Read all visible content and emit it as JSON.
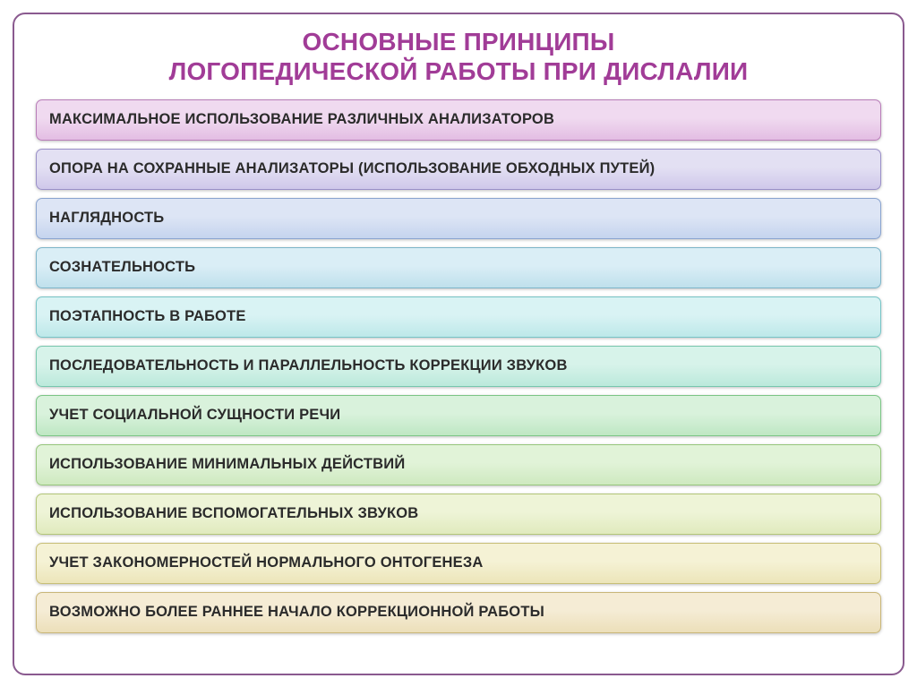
{
  "title": {
    "line1": "ОСНОВНЫЕ ПРИНЦИПЫ",
    "line2": "ЛОГОПЕДИЧЕСКОЙ РАБОТЫ ПРИ ДИСЛАЛИИ",
    "color": "#a13c97",
    "fontsize": 28
  },
  "frame": {
    "border_color": "#8a5a8f",
    "background": "#ffffff"
  },
  "rows": [
    {
      "text": "МАКСИМАЛЬНОЕ ИСПОЛЬЗОВАНИЕ РАЗЛИЧНЫХ АНАЛИЗАТОРОВ",
      "indent": 0,
      "gradient_top": "#f0daf0",
      "gradient_bottom": "#e3bde3",
      "border_color": "#b87db8"
    },
    {
      "text": "ОПОРА НА СОХРАННЫЕ АНАЛИЗАТОРЫ (ИСПОЛЬЗОВАНИЕ ОБХОДНЫХ ПУТЕЙ)",
      "indent": 0,
      "gradient_top": "#e3e0f3",
      "gradient_bottom": "#cfc8ea",
      "border_color": "#9a90c8"
    },
    {
      "text": "НАГЛЯДНОСТЬ",
      "indent": 0,
      "gradient_top": "#dde5f5",
      "gradient_bottom": "#c5d4ee",
      "border_color": "#8aa4cf"
    },
    {
      "text": "СОЗНАТЕЛЬНОСТЬ",
      "indent": 0,
      "gradient_top": "#daeef6",
      "gradient_bottom": "#bfe0ec",
      "border_color": "#7db5c9"
    },
    {
      "text": "ПОЭТАПНОСТЬ В РАБОТЕ",
      "indent": 0,
      "gradient_top": "#d9f3f4",
      "gradient_bottom": "#bde8e9",
      "border_color": "#77c4c6"
    },
    {
      "text": "ПОСЛЕДОВАТЕЛЬНОСТЬ И ПАРАЛЛЕЛЬНОСТЬ КОРРЕКЦИИ ЗВУКОВ",
      "indent": 0,
      "gradient_top": "#d7f3ea",
      "gradient_bottom": "#bbe9db",
      "border_color": "#77c7ae"
    },
    {
      "text": "УЧЕТ  СОЦИАЛЬНОЙ СУЩНОСТИ РЕЧИ",
      "indent": 0,
      "gradient_top": "#d9f2dc",
      "gradient_bottom": "#bee7c3",
      "border_color": "#7cc586"
    },
    {
      "text": "ИСПОЛЬЗОВАНИЕ МИНИМАЛЬНЫХ ДЕЙСТВИЙ",
      "indent": 0,
      "gradient_top": "#e1f3d8",
      "gradient_bottom": "#cee9bf",
      "border_color": "#96c67c"
    },
    {
      "text": "ИСПОЛЬЗОВАНИЕ ВСПОМОГАТЕЛЬНЫХ ЗВУКОВ",
      "indent": 0,
      "gradient_top": "#eef4d7",
      "gradient_bottom": "#e0eabd",
      "border_color": "#b3c678"
    },
    {
      "text": "УЧЕТ ЗАКОНОМЕРНОСТЕЙ НОРМАЛЬНОГО ОНТОГЕНЕЗА",
      "indent": 0,
      "gradient_top": "#f5f2d5",
      "gradient_bottom": "#ece5b9",
      "border_color": "#c7be77"
    },
    {
      "text": "ВОЗМОЖНО БОЛЕЕ РАННЕЕ НАЧАЛО КОРРЕКЦИОННОЙ РАБОТЫ",
      "indent": 0,
      "gradient_top": "#f5ecd5",
      "gradient_bottom": "#ecdfb9",
      "border_color": "#c9b679"
    }
  ],
  "row_style": {
    "fontsize": 16.5,
    "text_color": "#2b2b2b",
    "height": 46,
    "radius": 7
  }
}
